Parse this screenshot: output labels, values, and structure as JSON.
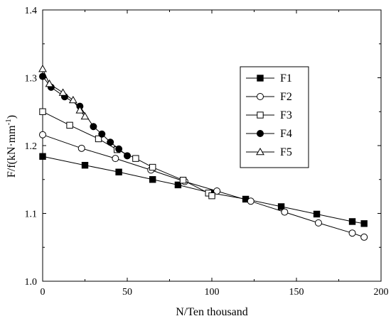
{
  "chart_data": {
    "type": "line",
    "title": "",
    "xlabel": "N/Ten thousand",
    "ylabel": "F/f(kN·mm",
    "ylabel_sup": "-1",
    "ylabel_close": ")",
    "xlim": [
      0,
      200
    ],
    "ylim": [
      1.0,
      1.4
    ],
    "xticks": [
      0,
      50,
      100,
      150,
      200
    ],
    "yticks": [
      1.0,
      1.1,
      1.2,
      1.3,
      1.4
    ],
    "xtick_labels": [
      "0",
      "50",
      "100",
      "150",
      "200"
    ],
    "ytick_labels": [
      "1.0",
      "1.1",
      "1.2",
      "1.3",
      "1.4"
    ],
    "grid": false,
    "legend_position": "right",
    "series": [
      {
        "name": "F1",
        "marker": "filled-square",
        "x": [
          0,
          25,
          45,
          65,
          80,
          100,
          120,
          141,
          162,
          183,
          190
        ],
        "y": [
          1.184,
          1.171,
          1.161,
          1.15,
          1.142,
          1.13,
          1.121,
          1.11,
          1.099,
          1.088,
          1.085
        ]
      },
      {
        "name": "F2",
        "marker": "open-circle",
        "x": [
          0,
          23,
          43,
          64,
          84,
          103,
          123,
          143,
          163,
          183,
          190
        ],
        "y": [
          1.216,
          1.196,
          1.181,
          1.164,
          1.147,
          1.133,
          1.118,
          1.102,
          1.086,
          1.071,
          1.065
        ]
      },
      {
        "name": "F3",
        "marker": "open-square",
        "x": [
          0,
          16,
          33,
          44,
          55,
          65,
          83,
          98,
          100
        ],
        "y": [
          1.25,
          1.23,
          1.21,
          1.194,
          1.181,
          1.168,
          1.149,
          1.13,
          1.126
        ]
      },
      {
        "name": "F4",
        "marker": "filled-circle",
        "x": [
          0,
          5,
          13,
          22,
          30,
          35,
          40,
          45,
          50
        ],
        "y": [
          1.302,
          1.286,
          1.272,
          1.258,
          1.228,
          1.217,
          1.205,
          1.195,
          1.185
        ]
      },
      {
        "name": "F5",
        "marker": "open-triangle",
        "x": [
          0,
          4,
          12,
          18,
          22,
          25
        ],
        "y": [
          1.313,
          1.291,
          1.278,
          1.267,
          1.252,
          1.243
        ]
      }
    ]
  }
}
